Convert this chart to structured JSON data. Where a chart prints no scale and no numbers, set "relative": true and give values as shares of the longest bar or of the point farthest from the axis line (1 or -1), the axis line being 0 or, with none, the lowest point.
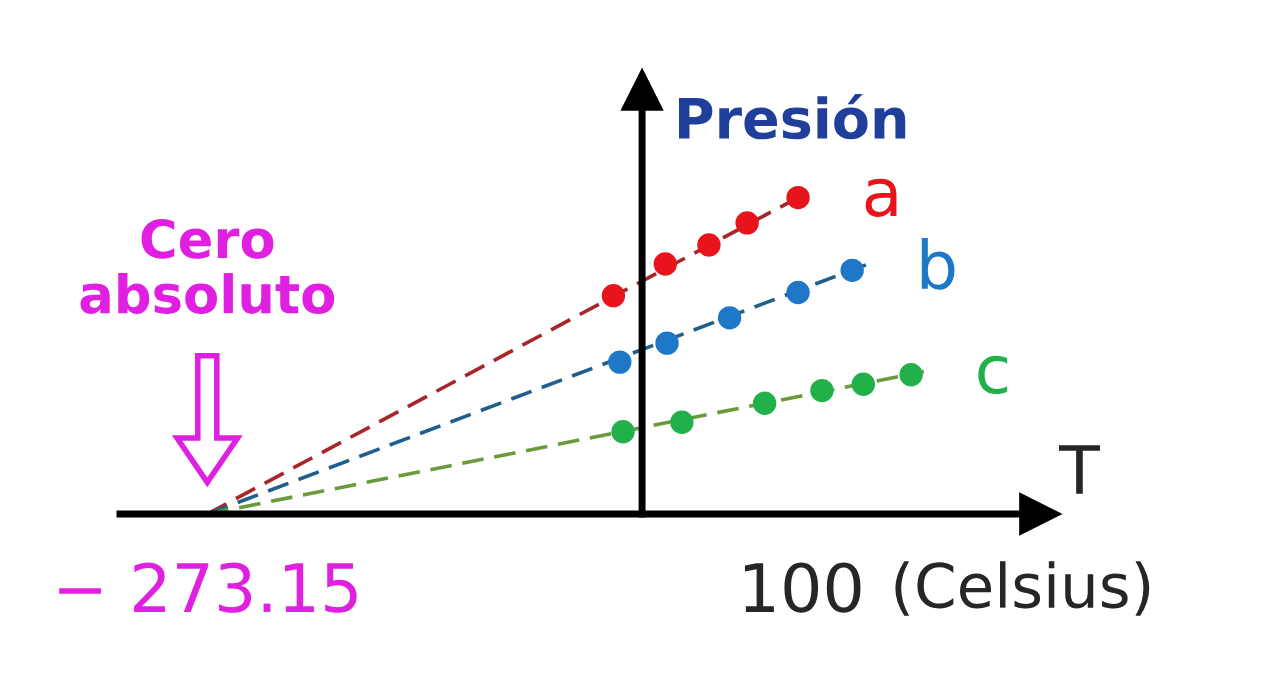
{
  "chart_data": {
    "type": "scatter",
    "relative": true,
    "ylabel": "Presión",
    "xlabel": "T",
    "xlim": [
      -328,
      250
    ],
    "xticks": [
      {
        "value": -273.15,
        "label": "− 273.15"
      },
      100
    ],
    "annotations": [
      "Cero absoluto",
      "(Celsius)"
    ],
    "series": [
      {
        "type": "line",
        "color": "#a8262a",
        "line_style": "dashed",
        "marker": "none",
        "x": [
          -273.15,
          98
        ],
        "values": [
          0,
          1
        ]
      },
      {
        "type": "line",
        "color": "#1f5f8b",
        "line_style": "dashed",
        "marker": "none",
        "x": [
          -273.15,
          142
        ],
        "values": [
          0,
          0.79
        ]
      },
      {
        "type": "line",
        "color": "#6a9a3a",
        "line_style": "dashed",
        "marker": "none",
        "x": [
          -273.15,
          177
        ],
        "values": [
          0,
          0.45
        ]
      },
      {
        "type": "scatter",
        "name": "a",
        "color": "#e8141c",
        "marker": "circle",
        "x": [
          -18,
          14.6,
          42,
          66,
          98
        ],
        "values": [
          0.69,
          0.79,
          0.85,
          0.92,
          1
        ]
      },
      {
        "type": "scatter",
        "name": "b",
        "color": "#1f77c8",
        "marker": "circle",
        "x": [
          -14,
          15.7,
          55,
          98,
          132
        ],
        "values": [
          0.48,
          0.54,
          0.62,
          0.7,
          0.77
        ]
      },
      {
        "type": "scatter",
        "name": "c",
        "color": "#22b04b",
        "marker": "circle",
        "x": [
          -12,
          25,
          77,
          113,
          139,
          169
        ],
        "values": [
          0.26,
          0.29,
          0.35,
          0.39,
          0.41,
          0.44
        ]
      }
    ]
  }
}
